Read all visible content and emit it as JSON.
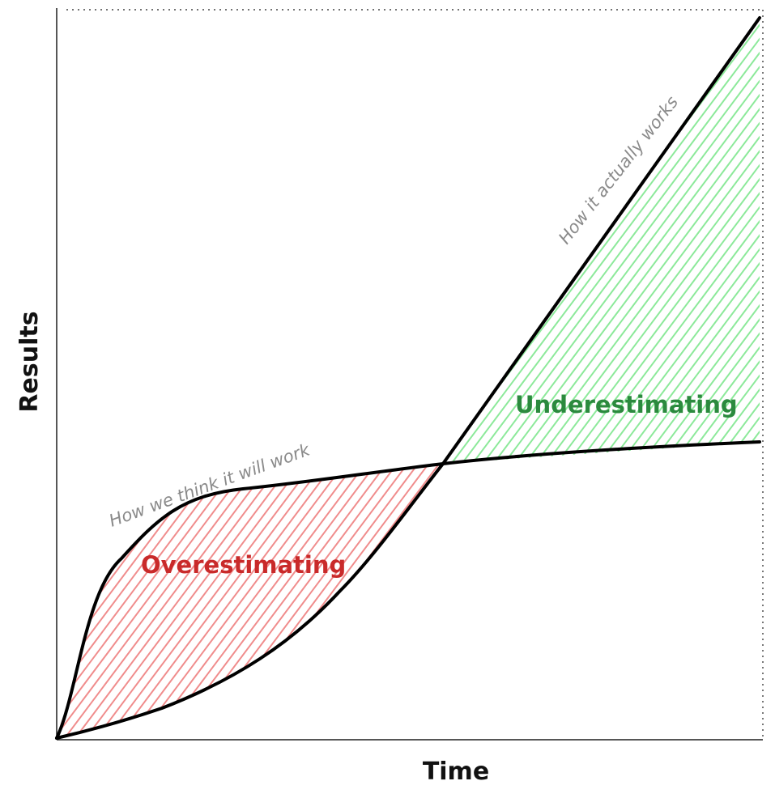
{
  "axes": {
    "x_label": "Time",
    "y_label": "Results"
  },
  "curves": {
    "expected": {
      "label": "How we think it will work",
      "color": "#000000"
    },
    "actual": {
      "label": "How it actually works",
      "color": "#000000"
    }
  },
  "regions": {
    "over": {
      "label": "Overestimating",
      "text_color": "#c92a2a",
      "hatch_color": "#f08c8c"
    },
    "under": {
      "label": "Underestimating",
      "text_color": "#2b8a3e",
      "hatch_color": "#8ce99a"
    }
  },
  "colors": {
    "axis": "#1e1e1e",
    "annotation": "#8a8a8a",
    "boundary": "#1e1e1e"
  }
}
